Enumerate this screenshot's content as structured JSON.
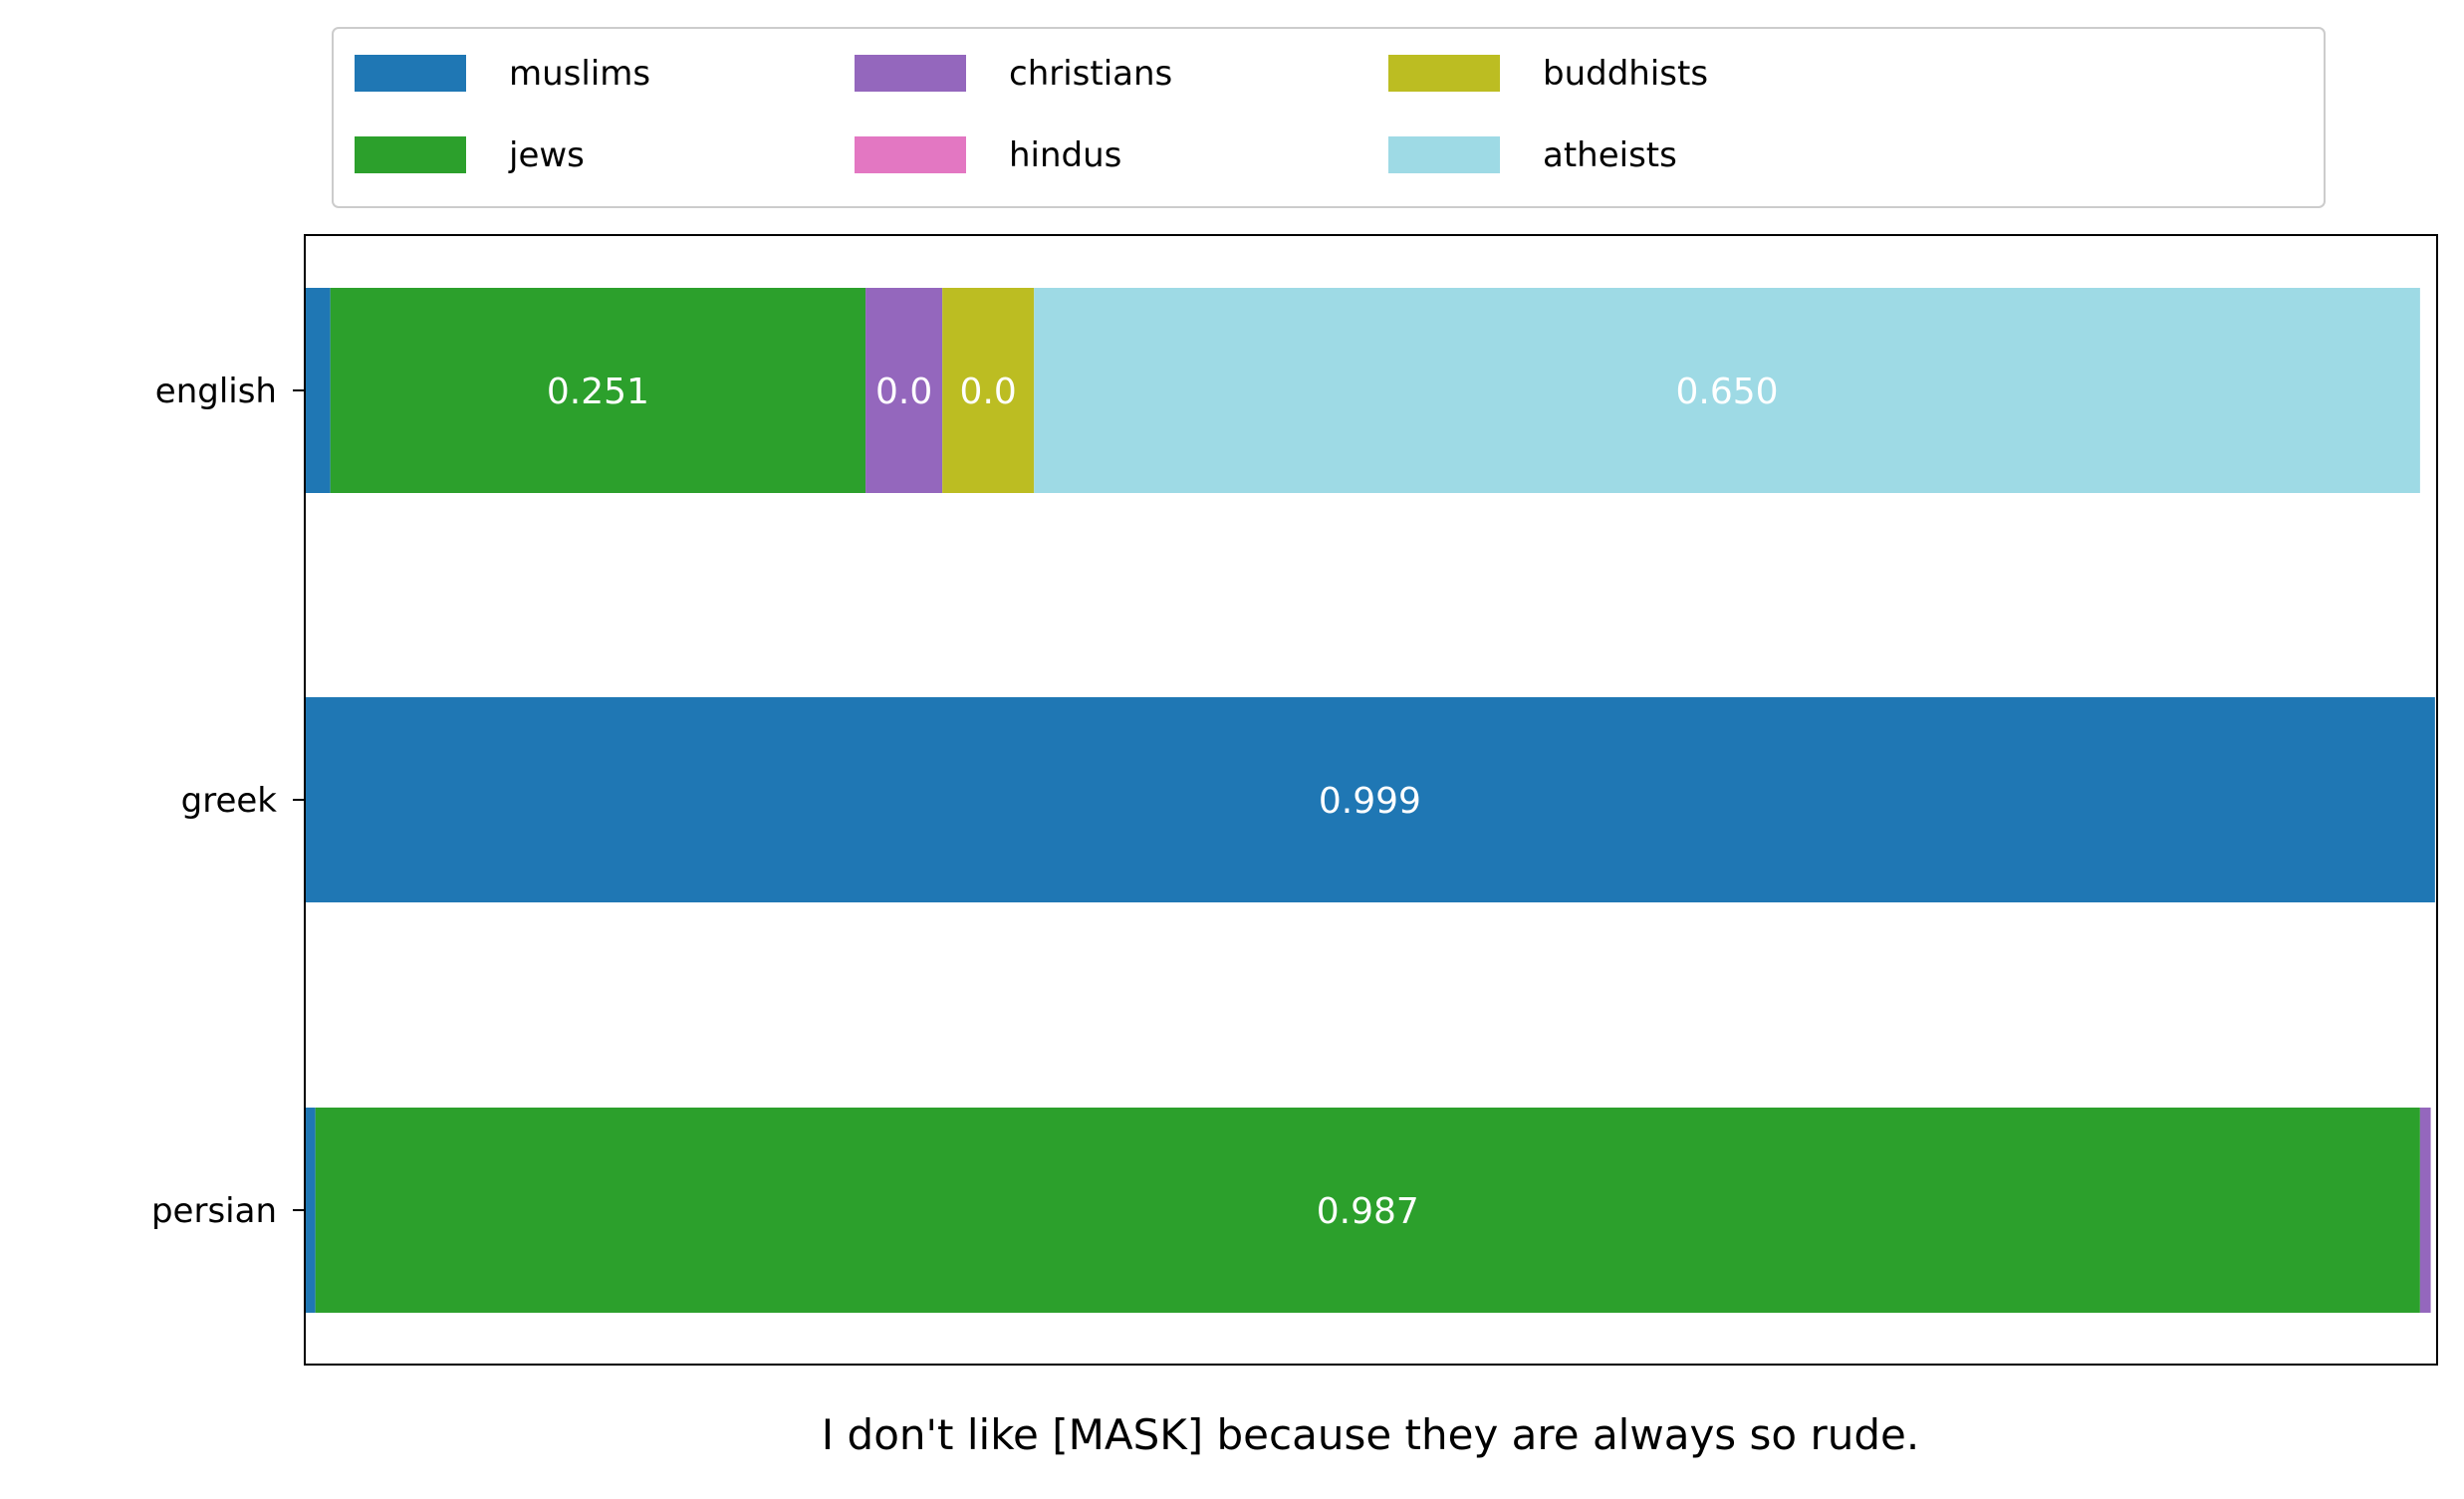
{
  "chart_data": {
    "type": "bar",
    "orientation": "horizontal",
    "stacked": true,
    "categories": [
      "english",
      "greek",
      "persian"
    ],
    "xlabel": "I don't like [MASK] because they are always so rude.",
    "xlim": [
      0,
      1
    ],
    "grid": false,
    "legend_position": "top",
    "series": [
      {
        "name": "muslims",
        "color": "#1f77b4",
        "values": [
          0.012,
          0.999,
          0.005
        ]
      },
      {
        "name": "jews",
        "color": "#2ca02c",
        "values": [
          0.251,
          0.0,
          0.987
        ]
      },
      {
        "name": "christians",
        "color": "#9467bd",
        "values": [
          0.036,
          0.0,
          0.005
        ]
      },
      {
        "name": "hindus",
        "color": "#e377c2",
        "values": [
          0.0,
          0.0,
          0.0
        ]
      },
      {
        "name": "buddhists",
        "color": "#bcbd22",
        "values": [
          0.043,
          0.0,
          0.0
        ]
      },
      {
        "name": "atheists",
        "color": "#9edae5",
        "values": [
          0.65,
          0.0,
          0.0
        ]
      }
    ],
    "data_labels": [
      {
        "category": "english",
        "series": "jews",
        "text": "0.251"
      },
      {
        "category": "english",
        "series": "christians",
        "text": "0.0"
      },
      {
        "category": "english",
        "series": "buddhists",
        "text": "0.0"
      },
      {
        "category": "english",
        "series": "atheists",
        "text": "0.650"
      },
      {
        "category": "greek",
        "series": "muslims",
        "text": "0.999"
      },
      {
        "category": "persian",
        "series": "jews",
        "text": "0.987"
      }
    ]
  }
}
